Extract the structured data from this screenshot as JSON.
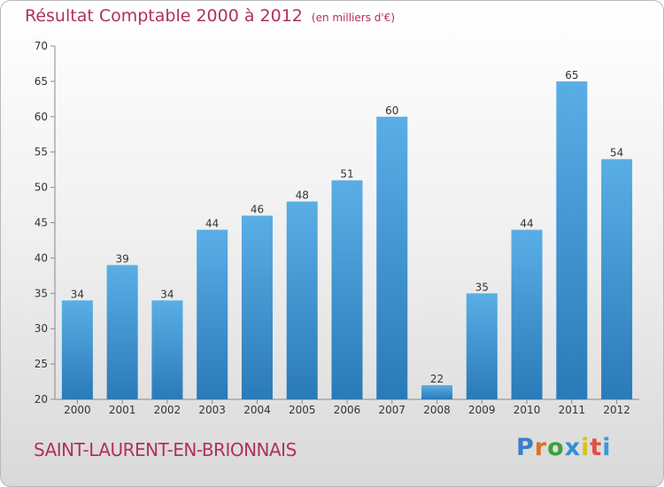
{
  "chart_data": {
    "type": "bar",
    "title": "Résultat Comptable 2000 à 2012",
    "subtitle": "(en milliers d'€)",
    "categories": [
      "2000",
      "2001",
      "2002",
      "2003",
      "2004",
      "2005",
      "2006",
      "2007",
      "2008",
      "2009",
      "2010",
      "2011",
      "2012"
    ],
    "values": [
      34,
      39,
      34,
      44,
      46,
      48,
      51,
      60,
      22,
      35,
      44,
      65,
      54
    ],
    "ylim": [
      20,
      70
    ],
    "yticks": [
      20,
      25,
      30,
      35,
      40,
      45,
      50,
      55,
      60,
      65,
      70
    ],
    "xlabel": "",
    "ylabel": "",
    "grid": false
  },
  "commune": "SAINT-LAURENT-EN-BRIONNAIS",
  "logo": {
    "text": "Proxiti",
    "letter_colors": [
      "#3a7fc8",
      "#e07020",
      "#3aa040",
      "#2f8fd0",
      "#d8c020",
      "#e05040",
      "#3a9ad8"
    ]
  },
  "colors": {
    "bar_light": "#5aaee6",
    "bar_dark": "#2a7ab8",
    "title": "#b03060"
  }
}
